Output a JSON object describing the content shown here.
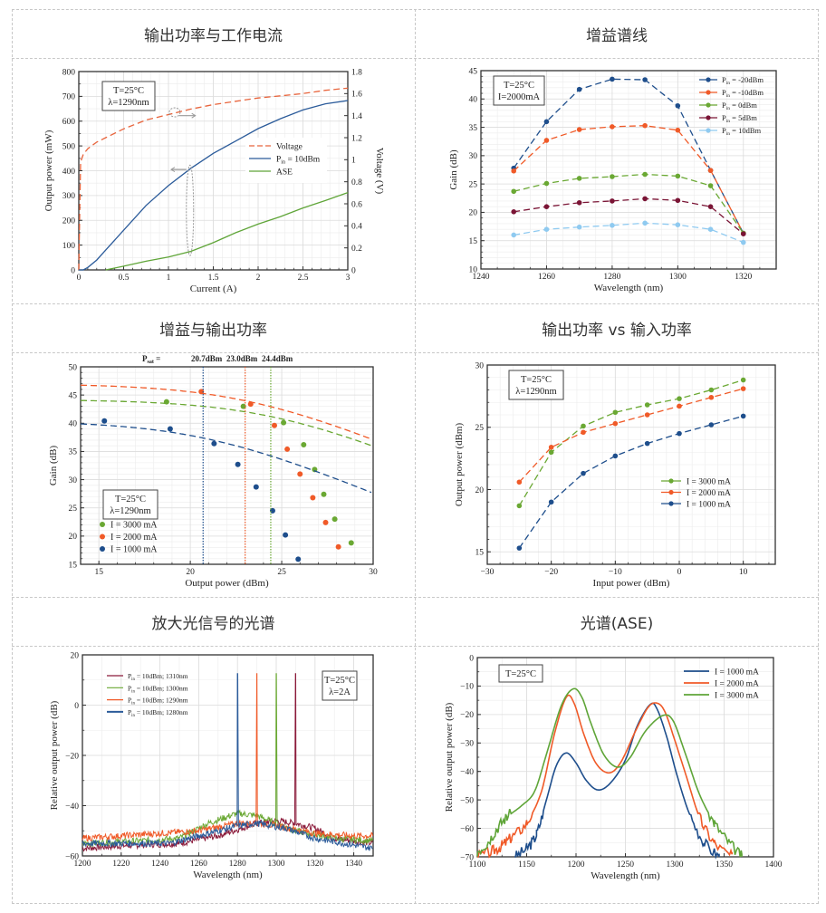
{
  "panels": [
    {
      "title": "输出功率与工作电流"
    },
    {
      "title": "增益谱线"
    },
    {
      "title": "增益与输出功率"
    },
    {
      "title": "输出功率 vs 输入功率"
    },
    {
      "title": "放大光信号的光谱"
    },
    {
      "title": "光谱(ASE)"
    }
  ],
  "chart_data": [
    {
      "id": "power-vs-current",
      "type": "line",
      "title": "输出功率与工作电流",
      "xlabel": "Current (A)",
      "ylabel": "Output power (mW)",
      "y2label": "Voltage (V)",
      "xlim": [
        0,
        3
      ],
      "ylim": [
        0,
        800
      ],
      "y2lim": [
        0,
        1.8
      ],
      "xticks": [
        "0",
        "0.5",
        "1",
        "1.5",
        "2",
        "2.5",
        "3"
      ],
      "yticks": [
        "0",
        "100",
        "200",
        "300",
        "400",
        "500",
        "600",
        "700",
        "800"
      ],
      "y2ticks": [
        "0",
        "0.2",
        "0.4",
        "0.6",
        "0.8",
        "1",
        "1.2",
        "1.4",
        "1.6",
        "1.8"
      ],
      "annotation": [
        "T=25°C",
        "λ=1290nm"
      ],
      "legend": [
        "Voltage",
        "P_in = 10dBm",
        "ASE"
      ],
      "legend_position": "center-right",
      "grid": true,
      "series": [
        {
          "name": "Voltage",
          "axis": "right",
          "color": "#e8643c",
          "dash": true,
          "x": [
            0,
            0.01,
            0.02,
            0.05,
            0.1,
            0.2,
            0.3,
            0.5,
            0.75,
            1.0,
            1.25,
            1.5,
            1.75,
            2.0,
            2.25,
            2.5,
            2.75,
            3.0
          ],
          "y": [
            0,
            0.5,
            0.98,
            1.05,
            1.1,
            1.16,
            1.2,
            1.28,
            1.36,
            1.41,
            1.46,
            1.5,
            1.53,
            1.56,
            1.58,
            1.6,
            1.63,
            1.65
          ]
        },
        {
          "name": "P_in = 10dBm",
          "axis": "left",
          "color": "#2b5b9a",
          "dash": false,
          "x": [
            0,
            0.05,
            0.1,
            0.2,
            0.3,
            0.5,
            0.75,
            1.0,
            1.25,
            1.5,
            1.75,
            2.0,
            2.25,
            2.5,
            2.75,
            3.0
          ],
          "y": [
            0,
            0,
            10,
            40,
            80,
            160,
            260,
            340,
            410,
            470,
            520,
            570,
            610,
            645,
            670,
            683
          ]
        },
        {
          "name": "ASE",
          "axis": "left",
          "color": "#5fa538",
          "dash": false,
          "x": [
            0.3,
            0.5,
            0.75,
            1.0,
            1.25,
            1.5,
            1.75,
            2.0,
            2.25,
            2.5,
            2.75,
            3.0
          ],
          "y": [
            0,
            15,
            35,
            52,
            75,
            110,
            150,
            185,
            215,
            250,
            280,
            312
          ]
        }
      ]
    },
    {
      "id": "gain-spectrum",
      "type": "line",
      "title": "增益谱线",
      "xlabel": "Wavelength (nm)",
      "ylabel": "Gain (dB)",
      "xlim": [
        1240,
        1330
      ],
      "ylim": [
        10,
        45
      ],
      "xticks": [
        "1240",
        "1260",
        "1280",
        "1300",
        "1320"
      ],
      "yticks": [
        "10",
        "15",
        "20",
        "25",
        "30",
        "35",
        "40",
        "45"
      ],
      "annotation": [
        "T=25°C",
        "I=2000mA"
      ],
      "legend_position": "top-right",
      "grid": true,
      "x": [
        1250,
        1260,
        1270,
        1280,
        1290,
        1300,
        1310,
        1320
      ],
      "series": [
        {
          "name": "P_in = -20dBm",
          "color": "#1e4e8c",
          "values": [
            27.8,
            36.0,
            41.7,
            43.5,
            43.4,
            38.8,
            27.4,
            16.3
          ]
        },
        {
          "name": "P_in = -10dBm",
          "color": "#f05a28",
          "values": [
            27.3,
            32.7,
            34.6,
            35.1,
            35.3,
            34.5,
            27.4,
            16.3
          ]
        },
        {
          "name": "P_in = 0dBm",
          "color": "#6aa833",
          "values": [
            23.7,
            25.1,
            26.0,
            26.3,
            26.7,
            26.4,
            24.7,
            16.3
          ]
        },
        {
          "name": "P_in = 5dBm",
          "color": "#7a1435",
          "values": [
            20.1,
            21.0,
            21.7,
            22.0,
            22.4,
            22.1,
            21.0,
            16.2
          ]
        },
        {
          "name": "P_in = 10dBm",
          "color": "#8fcaf0",
          "values": [
            16.0,
            17.0,
            17.4,
            17.7,
            18.1,
            17.8,
            17.0,
            14.7
          ]
        }
      ]
    },
    {
      "id": "gain-vs-output",
      "type": "scatter",
      "title": "增益与输出功率",
      "xlabel": "Output power (dBm)",
      "ylabel": "Gain (dB)",
      "xlim": [
        14,
        30
      ],
      "ylim": [
        15,
        50
      ],
      "xticks": [
        "15",
        "20",
        "25",
        "30"
      ],
      "yticks": [
        "15",
        "20",
        "25",
        "30",
        "35",
        "40",
        "45",
        "50"
      ],
      "annotation": [
        "T=25°C",
        "λ=1290nm"
      ],
      "psat_label": "P_sat =",
      "psat": [
        {
          "label": "20.7dBm",
          "value": 20.7,
          "color": "#1e4e8c"
        },
        {
          "label": "23.0dBm",
          "value": 23.0,
          "color": "#f05a28"
        },
        {
          "label": "24.4dBm",
          "value": 24.4,
          "color": "#6aa833"
        }
      ],
      "legend_position": "bottom-left",
      "grid": true,
      "series": [
        {
          "name": "I = 3000 mA",
          "color": "#6aa833",
          "g0": 44.2,
          "psat": 24.4,
          "points": [
            [
              18.7,
              43.8
            ],
            [
              22.9,
              43.0
            ],
            [
              25.1,
              40.1
            ],
            [
              26.2,
              36.2
            ],
            [
              26.8,
              31.8
            ],
            [
              27.3,
              27.4
            ],
            [
              27.9,
              23.0
            ],
            [
              28.8,
              18.8
            ]
          ]
        },
        {
          "name": "I = 2000 mA",
          "color": "#f05a28",
          "g0": 47.0,
          "psat": 23.0,
          "points": [
            [
              20.6,
              45.6
            ],
            [
              23.3,
              43.4
            ],
            [
              24.6,
              39.6
            ],
            [
              25.3,
              35.4
            ],
            [
              26.0,
              31.0
            ],
            [
              26.7,
              26.8
            ],
            [
              27.4,
              22.4
            ],
            [
              28.1,
              18.1
            ]
          ]
        },
        {
          "name": "I = 1000 mA",
          "color": "#1e4e8c",
          "g0": 40.4,
          "psat": 20.7,
          "points": [
            [
              15.3,
              40.4
            ],
            [
              18.9,
              39.0
            ],
            [
              21.3,
              36.4
            ],
            [
              22.6,
              32.7
            ],
            [
              23.6,
              28.7
            ],
            [
              24.5,
              24.5
            ],
            [
              25.2,
              20.2
            ],
            [
              25.9,
              15.9
            ]
          ]
        }
      ]
    },
    {
      "id": "output-vs-input",
      "type": "line",
      "title": "输出功率 vs 输入功率",
      "xlabel": "Input power (dBm)",
      "ylabel": "Output power (dBm)",
      "xlim": [
        -30,
        15
      ],
      "ylim": [
        14,
        30
      ],
      "xticks": [
        "−30",
        "−20",
        "−10",
        "0",
        "10"
      ],
      "yticks": [
        "15",
        "20",
        "25",
        "30"
      ],
      "annotation": [
        "T=25°C",
        "λ=1290nm"
      ],
      "legend_position": "center-right",
      "grid": true,
      "x": [
        -25,
        -20,
        -15,
        -10,
        -5,
        0,
        5,
        10
      ],
      "series": [
        {
          "name": "I = 3000 mA",
          "color": "#6aa833",
          "values": [
            18.7,
            23.0,
            25.1,
            26.2,
            26.8,
            27.3,
            28.0,
            28.8
          ]
        },
        {
          "name": "I = 2000 mA",
          "color": "#f05a28",
          "values": [
            20.6,
            23.4,
            24.6,
            25.3,
            26.0,
            26.7,
            27.4,
            28.1
          ]
        },
        {
          "name": "I = 1000 mA",
          "color": "#1e4e8c",
          "values": [
            15.3,
            19.0,
            21.3,
            22.7,
            23.7,
            24.5,
            25.2,
            25.9
          ]
        }
      ]
    },
    {
      "id": "amplified-signal-spectrum",
      "type": "line",
      "title": "放大光信号的光谱",
      "xlabel": "Wavelength (nm)",
      "ylabel": "Relative output power (dB)",
      "xlim": [
        1200,
        1350
      ],
      "ylim": [
        -60,
        20
      ],
      "xticks": [
        "1200",
        "1220",
        "1240",
        "1260",
        "1280",
        "1300",
        "1320",
        "1340"
      ],
      "yticks": [
        "−60",
        "−40",
        "−20",
        "0",
        "20"
      ],
      "annotation": [
        "T=25°C",
        "λ=2A"
      ],
      "legend_position": "top-left",
      "grid": true,
      "peak_level": 12.5,
      "series": [
        {
          "name": "P_in = 10dBm; 1310nm",
          "color": "#8b1a3a",
          "peak": 1310,
          "baseline": [
            [
              1200,
              -57
            ],
            [
              1220,
              -56
            ],
            [
              1250,
              -55
            ],
            [
              1270,
              -52
            ],
            [
              1290,
              -47
            ],
            [
              1300,
              -46
            ],
            [
              1310,
              -47
            ],
            [
              1320,
              -49
            ],
            [
              1330,
              -53
            ],
            [
              1350,
              -55
            ]
          ]
        },
        {
          "name": "P_in = 10dBm; 1300nm",
          "color": "#6aa833",
          "peak": 1300,
          "baseline": [
            [
              1200,
              -55
            ],
            [
              1230,
              -54
            ],
            [
              1250,
              -53
            ],
            [
              1265,
              -47
            ],
            [
              1280,
              -43
            ],
            [
              1290,
              -44
            ],
            [
              1300,
              -47
            ],
            [
              1310,
              -50
            ],
            [
              1330,
              -53
            ],
            [
              1350,
              -54
            ]
          ]
        },
        {
          "name": "P_in = 10dBm; 1290nm",
          "color": "#f05a28",
          "peak": 1290,
          "baseline": [
            [
              1200,
              -53
            ],
            [
              1220,
              -52
            ],
            [
              1240,
              -51
            ],
            [
              1260,
              -50
            ],
            [
              1280,
              -47
            ],
            [
              1290,
              -47
            ],
            [
              1300,
              -48
            ],
            [
              1320,
              -51
            ],
            [
              1340,
              -52
            ],
            [
              1350,
              -52
            ]
          ]
        },
        {
          "name": "P_in = 10dBm; 1280nm",
          "color": "#2b5b9a",
          "peak": 1280,
          "baseline": [
            [
              1200,
              -55
            ],
            [
              1220,
              -55
            ],
            [
              1245,
              -55
            ],
            [
              1265,
              -51
            ],
            [
              1280,
              -48
            ],
            [
              1290,
              -47
            ],
            [
              1305,
              -49
            ],
            [
              1320,
              -53
            ],
            [
              1335,
              -55
            ],
            [
              1350,
              -57
            ]
          ]
        }
      ]
    },
    {
      "id": "ase-spectrum",
      "type": "line",
      "title": "光谱(ASE)",
      "xlabel": "Wavelength (nm)",
      "ylabel": "Relative output power (dB)",
      "xlim": [
        1100,
        1400
      ],
      "ylim": [
        -70,
        0
      ],
      "xticks": [
        "1100",
        "1150",
        "1200",
        "1250",
        "1300",
        "1350",
        "1400"
      ],
      "yticks": [
        "−70",
        "−60",
        "−50",
        "−40",
        "−30",
        "−20",
        "−10",
        "0"
      ],
      "annotation": [
        "T=25°C"
      ],
      "legend_position": "top-right",
      "grid": true,
      "series": [
        {
          "name": "I = 1000 mA",
          "color": "#1e4e8c",
          "points": [
            [
              1138,
              -70
            ],
            [
              1150,
              -67
            ],
            [
              1160,
              -62
            ],
            [
              1170,
              -50
            ],
            [
              1180,
              -38
            ],
            [
              1190,
              -33.5
            ],
            [
              1200,
              -37
            ],
            [
              1210,
              -43
            ],
            [
              1222,
              -46.5
            ],
            [
              1235,
              -44
            ],
            [
              1250,
              -36
            ],
            [
              1262,
              -24
            ],
            [
              1275,
              -16.5
            ],
            [
              1282,
              -18
            ],
            [
              1292,
              -28
            ],
            [
              1302,
              -41
            ],
            [
              1315,
              -55
            ],
            [
              1330,
              -65
            ],
            [
              1345,
              -70
            ]
          ]
        },
        {
          "name": "I = 2000 mA",
          "color": "#f05a28",
          "points": [
            [
              1100,
              -70
            ],
            [
              1115,
              -68
            ],
            [
              1125,
              -66
            ],
            [
              1135,
              -63
            ],
            [
              1150,
              -58
            ],
            [
              1165,
              -47
            ],
            [
              1178,
              -27
            ],
            [
              1190,
              -14
            ],
            [
              1198,
              -16
            ],
            [
              1208,
              -27
            ],
            [
              1220,
              -37
            ],
            [
              1233,
              -40.5
            ],
            [
              1245,
              -37
            ],
            [
              1260,
              -26
            ],
            [
              1273,
              -17.5
            ],
            [
              1282,
              -16
            ],
            [
              1290,
              -19
            ],
            [
              1300,
              -29
            ],
            [
              1312,
              -42
            ],
            [
              1325,
              -56
            ],
            [
              1340,
              -65
            ],
            [
              1358,
              -70
            ]
          ]
        },
        {
          "name": "I = 3000 mA",
          "color": "#5fa538",
          "points": [
            [
              1100,
              -68
            ],
            [
              1110,
              -65
            ],
            [
              1120,
              -60
            ],
            [
              1130,
              -56
            ],
            [
              1145,
              -52
            ],
            [
              1158,
              -47
            ],
            [
              1170,
              -34
            ],
            [
              1185,
              -17
            ],
            [
              1197,
              -11
            ],
            [
              1206,
              -14
            ],
            [
              1215,
              -23
            ],
            [
              1228,
              -34
            ],
            [
              1242,
              -38.5
            ],
            [
              1255,
              -35
            ],
            [
              1270,
              -26
            ],
            [
              1287,
              -20.5
            ],
            [
              1298,
              -22
            ],
            [
              1310,
              -33
            ],
            [
              1325,
              -48
            ],
            [
              1340,
              -58
            ],
            [
              1355,
              -65
            ],
            [
              1368,
              -70
            ]
          ]
        }
      ]
    }
  ]
}
